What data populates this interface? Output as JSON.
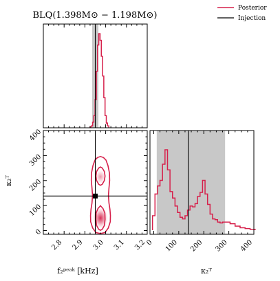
{
  "chart_data": {
    "type": "corner",
    "title": "BLQ(1.398M⊙ − 1.198M⊙)",
    "legend": {
      "placement": "top-right",
      "entries": [
        {
          "label": "Posterior",
          "color": "#d6204b"
        },
        {
          "label": "Injection",
          "color": "#000000"
        }
      ]
    },
    "colors": {
      "posterior": "#d6204b",
      "injection": "#000000",
      "band": "#c8c8c8"
    },
    "x_param": {
      "label": "f₂ᵖᵉᵃᵏ [kHz]",
      "xlim": [
        2.7,
        3.2
      ],
      "ticks": [
        "2.8",
        "2.9",
        "3.0",
        "3.1",
        "3.2"
      ],
      "injection": 2.95,
      "band": [
        2.935,
        2.965
      ]
    },
    "y_param": {
      "label": "κ₂ᵀ",
      "lim": [
        -15,
        400
      ],
      "ticks": [
        "0",
        "100",
        "200",
        "300",
        "400"
      ],
      "injection": 138,
      "band": [
        12,
        285
      ]
    },
    "hist_f": {
      "edges_start": 2.925,
      "bin_width": 0.006,
      "heights": [
        0.01,
        0.02,
        0.06,
        0.13,
        0.3,
        0.6,
        0.88,
        1.0,
        0.93,
        0.76,
        0.55,
        0.32,
        0.13,
        0.05,
        0.02
      ]
    },
    "hist_kappa": {
      "edges_start": -5,
      "bin_width": 10,
      "heights": [
        0.18,
        0.45,
        0.55,
        0.62,
        0.82,
        1.0,
        0.75,
        0.48,
        0.4,
        0.3,
        0.22,
        0.16,
        0.14,
        0.18,
        0.25,
        0.3,
        0.29,
        0.33,
        0.42,
        0.47,
        0.62,
        0.45,
        0.32,
        0.2,
        0.14,
        0.13,
        0.1,
        0.09,
        0.1,
        0.1,
        0.1,
        0.08,
        0.08,
        0.05,
        0.05,
        0.03,
        0.03,
        0.02,
        0.02,
        0.01,
        0.01
      ]
    },
    "joint_contours": [
      {
        "level": "outer",
        "cx": 2.975,
        "w": 0.048,
        "points": [
          [
            -8,
            0.45
          ],
          [
            10,
            0.78
          ],
          [
            35,
            0.98
          ],
          [
            60,
            1.0
          ],
          [
            85,
            0.95
          ],
          [
            110,
            0.85
          ],
          [
            140,
            0.8
          ],
          [
            170,
            0.85
          ],
          [
            200,
            0.92
          ],
          [
            230,
            0.9
          ],
          [
            260,
            0.75
          ],
          [
            282,
            0.55
          ],
          [
            292,
            0.3
          ]
        ]
      },
      {
        "level": "inner",
        "cx": 2.975,
        "w": 0.022,
        "lobes": [
          [
            [
              5,
              0.4
            ],
            [
              20,
              0.85
            ],
            [
              45,
              1.0
            ],
            [
              70,
              0.95
            ],
            [
              88,
              0.55
            ],
            [
              95,
              0.2
            ]
          ],
          [
            [
              185,
              0.4
            ],
            [
              200,
              0.85
            ],
            [
              218,
              1.0
            ],
            [
              236,
              0.85
            ],
            [
              250,
              0.4
            ]
          ]
        ]
      }
    ],
    "joint_density_peaks": [
      {
        "x": 2.975,
        "y": 50,
        "r": 1.0
      },
      {
        "x": 2.975,
        "y": 215,
        "r": 0.55
      }
    ]
  }
}
